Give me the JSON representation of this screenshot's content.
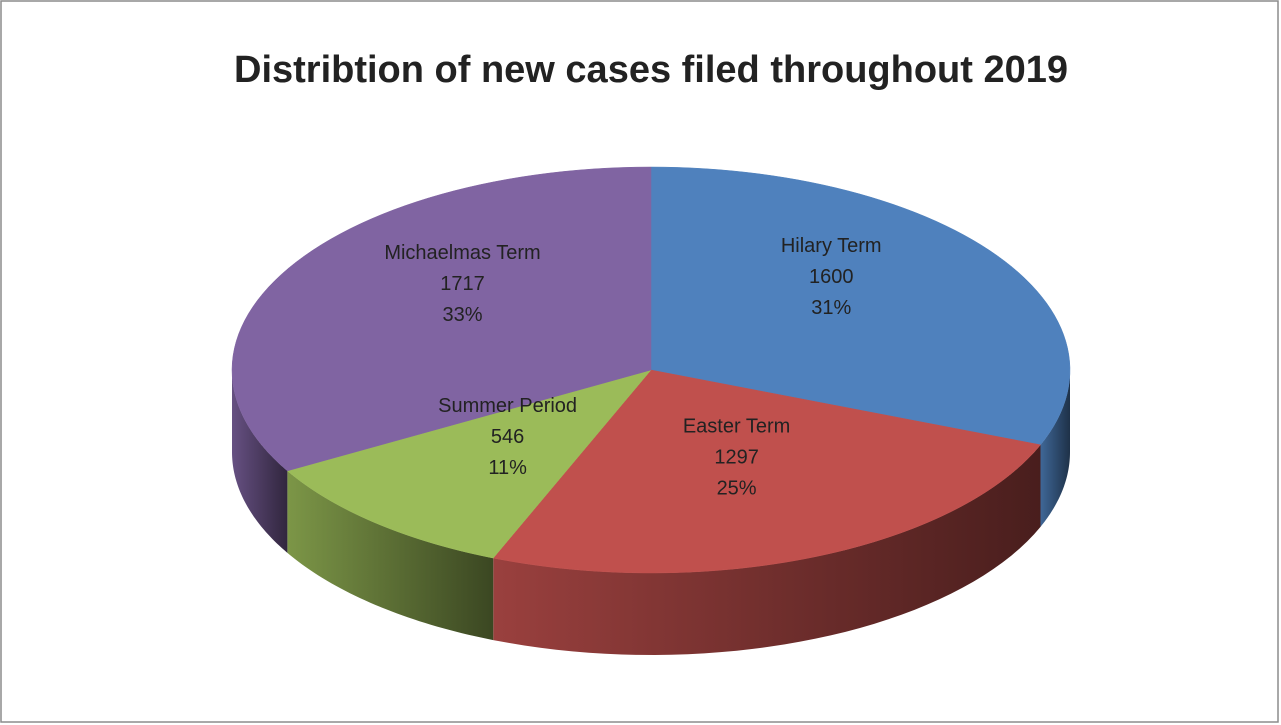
{
  "chart_data": {
    "type": "pie3d",
    "title": "Distribtion of new cases filed throughout 2019",
    "categories": [
      "Hilary Term",
      "Easter Term",
      "Summer Period",
      "Michaelmas Term"
    ],
    "values": [
      1600,
      1297,
      546,
      1717
    ],
    "percent_labels": [
      "31%",
      "25%",
      "11%",
      "33%"
    ],
    "colors": [
      "#4f81bd",
      "#c0504d",
      "#9bbb59",
      "#8064a2"
    ]
  }
}
